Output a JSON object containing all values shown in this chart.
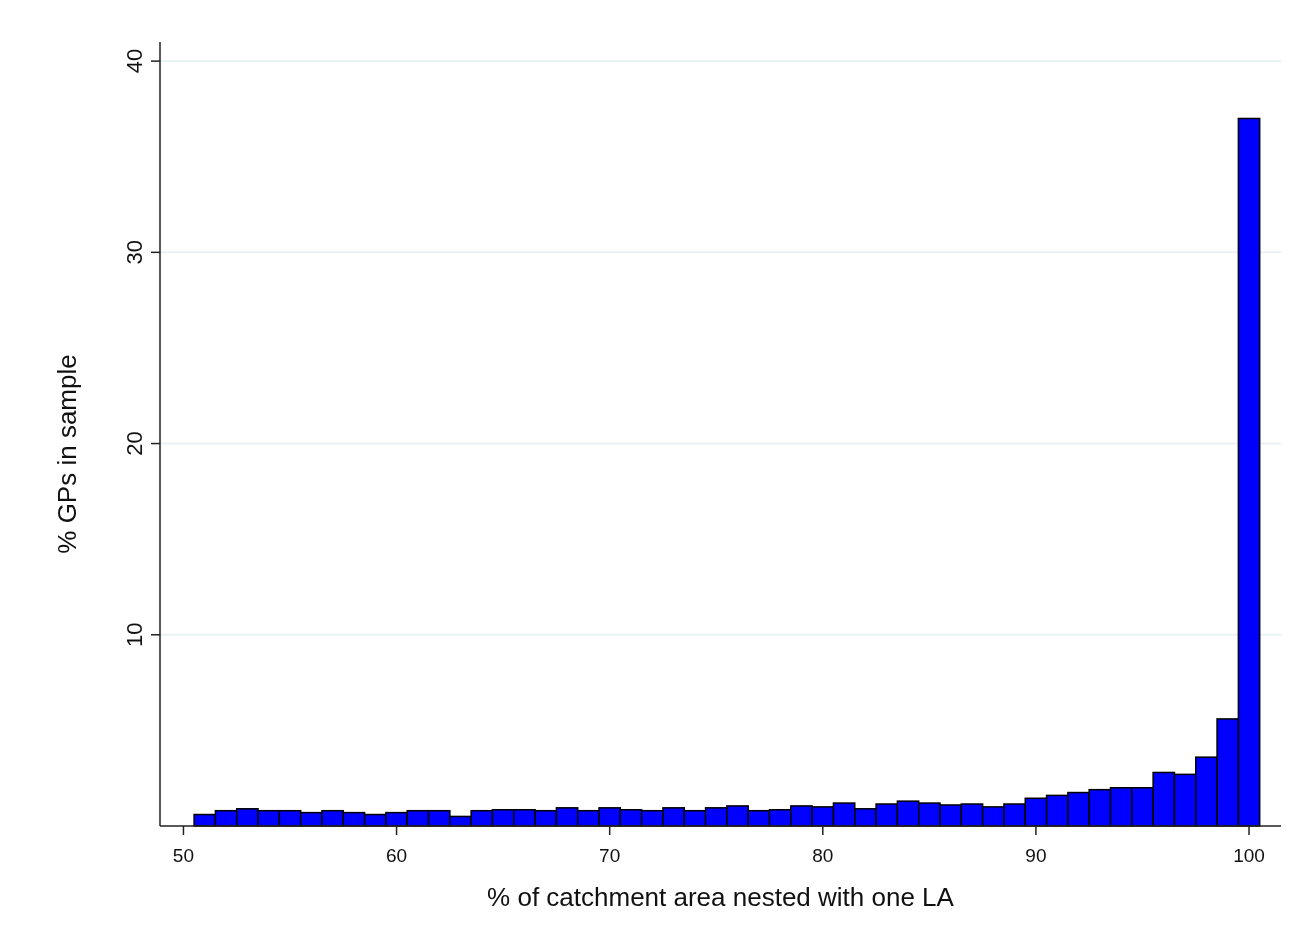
{
  "chart_data": {
    "type": "histogram",
    "xlabel": "% of catchment area nested with one LA",
    "ylabel": "% GPs in sample",
    "bins": [
      50.5,
      51.5,
      52.5,
      53.5,
      54.5,
      55.5,
      56.5,
      57.5,
      58.5,
      59.5,
      60.5,
      61.5,
      62.5,
      63.5,
      64.5,
      65.5,
      66.5,
      67.5,
      68.5,
      69.5,
      70.5,
      71.5,
      72.5,
      73.5,
      74.5,
      75.5,
      76.5,
      77.5,
      78.5,
      79.5,
      80.5,
      81.5,
      82.5,
      83.5,
      84.5,
      85.5,
      86.5,
      87.5,
      88.5,
      89.5,
      90.5,
      91.5,
      92.5,
      93.5,
      94.5,
      95.5,
      96.5,
      97.5,
      98.5,
      99.5,
      100.5
    ],
    "values": [
      0.6,
      0.8,
      0.9,
      0.8,
      0.8,
      0.7,
      0.8,
      0.7,
      0.6,
      0.7,
      0.8,
      0.8,
      0.5,
      0.8,
      0.85,
      0.85,
      0.8,
      0.95,
      0.8,
      0.95,
      0.85,
      0.8,
      0.95,
      0.8,
      0.95,
      1.05,
      0.8,
      0.85,
      1.05,
      1.0,
      1.2,
      0.9,
      1.15,
      1.3,
      1.2,
      1.1,
      1.15,
      1.0,
      1.15,
      1.45,
      1.6,
      1.75,
      1.9,
      2.0,
      2.0,
      2.8,
      2.7,
      3.6,
      5.6,
      37.0
    ],
    "color": "#0000ff",
    "xlim": [
      48.9,
      101.5
    ],
    "ylim": [
      0,
      41
    ],
    "xticks": [
      50,
      60,
      70,
      80,
      90,
      100
    ],
    "yticks": [
      10,
      20,
      30,
      40
    ],
    "grid": "y"
  }
}
